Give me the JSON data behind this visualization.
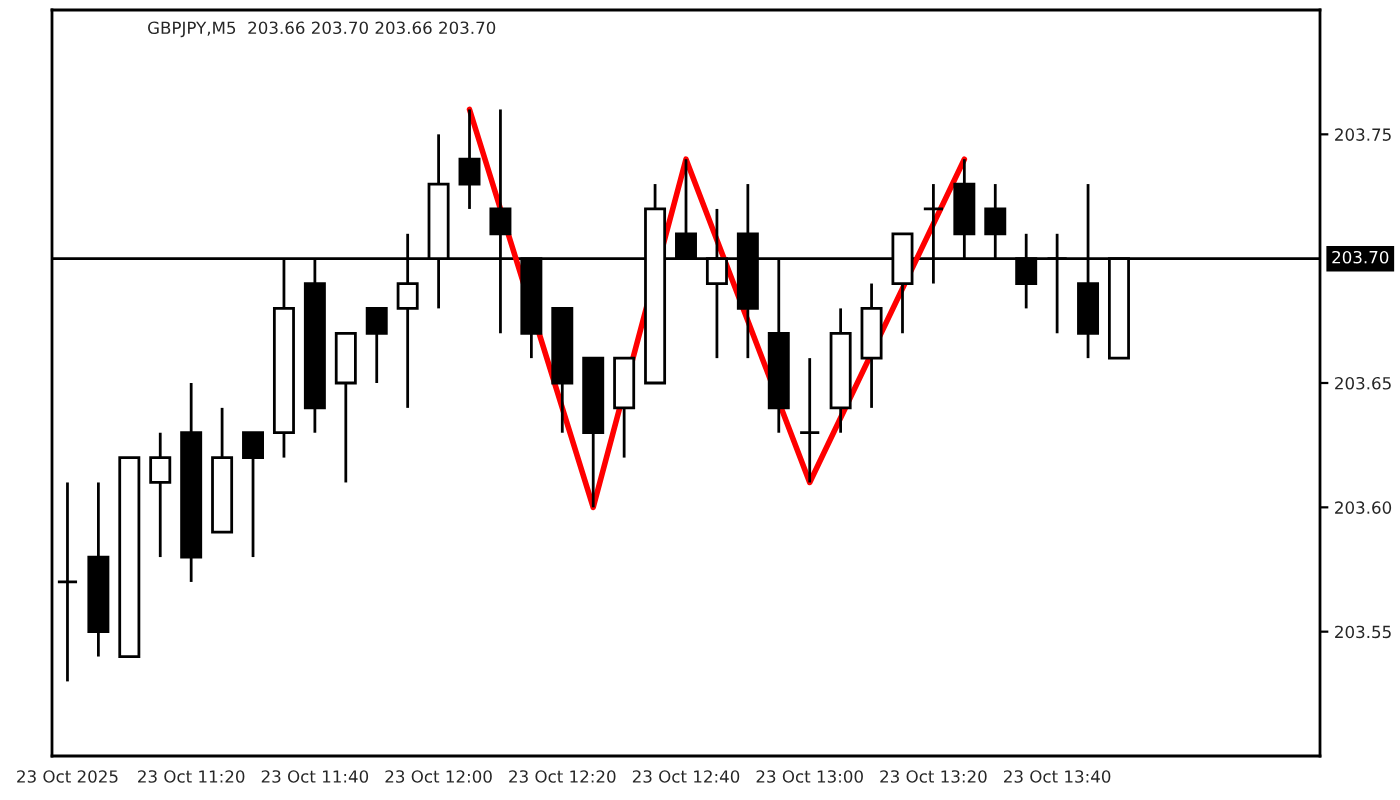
{
  "chart_data": {
    "type": "candlestick",
    "title": "GBPJPY,M5  203.66 203.70 203.66 203.70",
    "categories": [
      "23 Oct 2025",
      null,
      null,
      null,
      "23 Oct 11:20",
      null,
      null,
      null,
      "23 Oct 11:40",
      null,
      null,
      null,
      "23 Oct 12:00",
      null,
      null,
      null,
      "23 Oct 12:20",
      null,
      null,
      null,
      "23 Oct 12:40",
      null,
      null,
      null,
      "23 Oct 13:00",
      null,
      null,
      null,
      "23 Oct 13:20",
      null,
      null,
      null,
      "23 Oct 13:40",
      null,
      null,
      null,
      null,
      null,
      null,
      null,
      null
    ],
    "ohlc": [
      [
        203.57,
        203.61,
        203.53,
        203.57
      ],
      [
        203.58,
        203.61,
        203.54,
        203.55
      ],
      [
        203.54,
        203.62,
        203.54,
        203.62
      ],
      [
        203.61,
        203.63,
        203.58,
        203.62
      ],
      [
        203.63,
        203.65,
        203.57,
        203.58
      ],
      [
        203.59,
        203.64,
        203.59,
        203.62
      ],
      [
        203.63,
        203.63,
        203.58,
        203.62
      ],
      [
        203.63,
        203.7,
        203.62,
        203.68
      ],
      [
        203.69,
        203.7,
        203.63,
        203.64
      ],
      [
        203.65,
        203.67,
        203.61,
        203.67
      ],
      [
        203.68,
        203.68,
        203.65,
        203.67
      ],
      [
        203.68,
        203.71,
        203.64,
        203.69
      ],
      [
        203.7,
        203.75,
        203.68,
        203.73
      ],
      [
        203.74,
        203.76,
        203.72,
        203.73
      ],
      [
        203.72,
        203.76,
        203.67,
        203.71
      ],
      [
        203.7,
        203.7,
        203.66,
        203.67
      ],
      [
        203.68,
        203.68,
        203.63,
        203.65
      ],
      [
        203.66,
        203.66,
        203.6,
        203.63
      ],
      [
        203.64,
        203.66,
        203.62,
        203.66
      ],
      [
        203.65,
        203.73,
        203.65,
        203.72
      ],
      [
        203.71,
        203.74,
        203.7,
        203.7
      ],
      [
        203.69,
        203.72,
        203.66,
        203.7
      ],
      [
        203.71,
        203.73,
        203.66,
        203.68
      ],
      [
        203.67,
        203.7,
        203.63,
        203.64
      ],
      [
        203.63,
        203.66,
        203.61,
        203.63
      ],
      [
        203.64,
        203.68,
        203.63,
        203.67
      ],
      [
        203.66,
        203.69,
        203.64,
        203.68
      ],
      [
        203.69,
        203.71,
        203.67,
        203.71
      ],
      [
        203.72,
        203.73,
        203.69,
        203.72
      ],
      [
        203.73,
        203.74,
        203.7,
        203.71
      ],
      [
        203.72,
        203.73,
        203.7,
        203.71
      ],
      [
        203.7,
        203.71,
        203.68,
        203.69
      ],
      [
        203.7,
        203.71,
        203.67,
        203.7
      ],
      [
        203.69,
        203.73,
        203.66,
        203.67
      ],
      [
        203.66,
        203.7,
        203.66,
        203.7
      ],
      null,
      null,
      null,
      null,
      null,
      null
    ],
    "series": [
      {
        "type": "line",
        "color": "#ff0000",
        "values": [
          null,
          null,
          null,
          null,
          null,
          null,
          null,
          null,
          null,
          null,
          null,
          null,
          null,
          203.76,
          null,
          null,
          null,
          203.6,
          null,
          null,
          203.74,
          null,
          null,
          null,
          203.61,
          null,
          null,
          null,
          null,
          203.74,
          null,
          null,
          null,
          null,
          null,
          null,
          null,
          null,
          null,
          null,
          null
        ]
      }
    ],
    "ref_lines": [
      {
        "axis": "y",
        "value": 203.7,
        "label": "203.70",
        "color": "#000000"
      }
    ],
    "ylim": [
      203.5,
      203.8
    ],
    "yticks": [
      {
        "value": 203.55,
        "label": "203.55"
      },
      {
        "value": 203.6,
        "label": "203.60"
      },
      {
        "value": 203.65,
        "label": "203.65"
      },
      {
        "value": 203.75,
        "label": "203.75"
      }
    ],
    "grid": false,
    "legend": false
  }
}
